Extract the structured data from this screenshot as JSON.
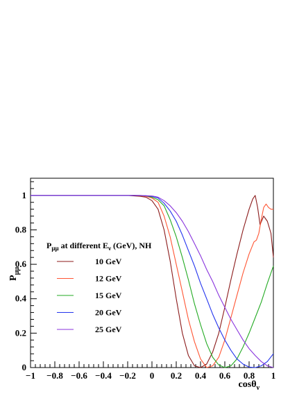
{
  "chart_data": {
    "type": "line",
    "title": "",
    "xlabel_base": "cosθ",
    "xlabel_sub": "ν",
    "ylabel_base": "P",
    "ylabel_sub": "μμ",
    "xlim": [
      -1,
      1
    ],
    "ylim": [
      0,
      1.1
    ],
    "grid": false,
    "legend_position": "left",
    "legend_title": {
      "p_base": "P",
      "p_sub": "μμ",
      "mid": " at different E",
      "e_sub": "ν",
      "tail": " (GeV), NH"
    },
    "x_ticks": [
      -1,
      -0.8,
      -0.6,
      -0.4,
      -0.2,
      0,
      0.2,
      0.4,
      0.6,
      0.8,
      1
    ],
    "x_tick_labels": [
      "−1",
      "−0.8",
      "−0.6",
      "−0.4",
      "−0.2",
      "0",
      "0.2",
      "0.4",
      "0.6",
      "0.8",
      "1"
    ],
    "y_ticks": [
      0,
      0.2,
      0.4,
      0.6,
      0.8,
      1
    ],
    "y_tick_labels": [
      "0",
      "0.2",
      "0.4",
      "0.6",
      "0.8",
      "1"
    ],
    "series": [
      {
        "name": "10 GeV",
        "color": "#8b1a1a",
        "x": [
          -1,
          -0.2,
          -0.1,
          -0.05,
          0,
          0.05,
          0.1,
          0.15,
          0.2,
          0.25,
          0.3,
          0.35,
          0.4,
          0.45,
          0.5,
          0.55,
          0.6,
          0.65,
          0.7,
          0.75,
          0.8,
          0.83,
          0.85,
          0.87,
          0.89,
          0.92,
          0.95,
          0.98,
          1.0
        ],
        "y": [
          1,
          1,
          0.995,
          0.99,
          0.97,
          0.92,
          0.8,
          0.62,
          0.4,
          0.2,
          0.07,
          0.01,
          0.0,
          0.02,
          0.09,
          0.2,
          0.35,
          0.51,
          0.66,
          0.8,
          0.92,
          0.98,
          1.0,
          0.93,
          0.83,
          0.88,
          0.85,
          0.78,
          0.64
        ]
      },
      {
        "name": "12 GeV",
        "color": "#ff5533",
        "x": [
          -1,
          -0.15,
          -0.05,
          0,
          0.05,
          0.1,
          0.15,
          0.2,
          0.25,
          0.3,
          0.35,
          0.4,
          0.45,
          0.5,
          0.55,
          0.6,
          0.65,
          0.7,
          0.75,
          0.8,
          0.84,
          0.86,
          0.88,
          0.9,
          0.92,
          0.94,
          0.96,
          0.98,
          1.0
        ],
        "y": [
          1,
          1,
          0.995,
          0.985,
          0.96,
          0.88,
          0.76,
          0.6,
          0.44,
          0.28,
          0.15,
          0.05,
          0.0,
          0.01,
          0.06,
          0.16,
          0.29,
          0.42,
          0.55,
          0.66,
          0.73,
          0.74,
          0.78,
          0.86,
          0.93,
          0.95,
          0.93,
          0.92,
          0.92
        ]
      },
      {
        "name": "15 GeV",
        "color": "#22aa22",
        "x": [
          -1,
          -0.15,
          -0.05,
          0,
          0.05,
          0.1,
          0.15,
          0.2,
          0.25,
          0.3,
          0.35,
          0.4,
          0.45,
          0.5,
          0.55,
          0.6,
          0.65,
          0.7,
          0.75,
          0.8,
          0.85,
          0.9,
          0.95,
          1.0
        ],
        "y": [
          1,
          1,
          0.998,
          0.99,
          0.975,
          0.94,
          0.86,
          0.76,
          0.64,
          0.51,
          0.37,
          0.25,
          0.14,
          0.06,
          0.015,
          0.0,
          0.01,
          0.05,
          0.12,
          0.2,
          0.29,
          0.38,
          0.49,
          0.59
        ]
      },
      {
        "name": "20 GeV",
        "color": "#2233ee",
        "x": [
          -1,
          -0.1,
          0,
          0.05,
          0.1,
          0.15,
          0.2,
          0.25,
          0.3,
          0.35,
          0.4,
          0.45,
          0.5,
          0.55,
          0.6,
          0.65,
          0.7,
          0.75,
          0.8,
          0.85,
          0.9,
          0.95,
          1.0
        ],
        "y": [
          1,
          1,
          0.995,
          0.985,
          0.955,
          0.91,
          0.85,
          0.77,
          0.68,
          0.59,
          0.49,
          0.4,
          0.31,
          0.23,
          0.16,
          0.1,
          0.05,
          0.02,
          0.003,
          0.0,
          0.01,
          0.035,
          0.08
        ]
      },
      {
        "name": "25 GeV",
        "color": "#8833dd",
        "x": [
          -1,
          -0.1,
          0,
          0.05,
          0.1,
          0.15,
          0.2,
          0.25,
          0.3,
          0.35,
          0.4,
          0.45,
          0.5,
          0.55,
          0.6,
          0.65,
          0.7,
          0.75,
          0.8,
          0.85,
          0.9,
          0.95,
          1.0
        ],
        "y": [
          1,
          1,
          0.997,
          0.99,
          0.97,
          0.94,
          0.9,
          0.85,
          0.79,
          0.72,
          0.65,
          0.57,
          0.5,
          0.42,
          0.35,
          0.28,
          0.22,
          0.16,
          0.11,
          0.07,
          0.035,
          0.01,
          0.0
        ]
      }
    ]
  }
}
